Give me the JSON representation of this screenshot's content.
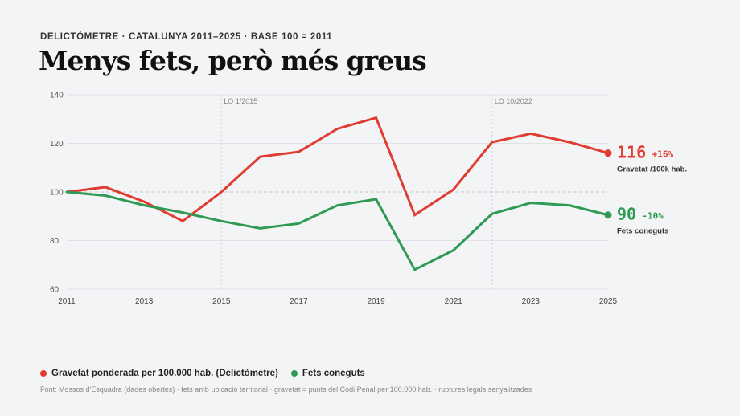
{
  "eyebrow": "DELICTÒMETRE · CATALUNYA 2011–2025 · BASE 100 = 2011",
  "headline": "Menys fets, però més greus",
  "legend": {
    "red_label": "Gravetat ponderada per 100.000 hab. (Delictòmetre)",
    "green_label": "Fets coneguts"
  },
  "source": "Font: Mossos d'Esquadra (dades obertes) · fets amb ubicació territorial · gravetat = punts del Codi Penal per 100.000 hab. · ruptures legals senyalitzades",
  "chart_data": {
    "type": "line",
    "title": "Menys fets, però més greus",
    "xlabel": "",
    "ylabel": "",
    "x": [
      2011,
      2012,
      2013,
      2014,
      2015,
      2016,
      2017,
      2018,
      2019,
      2020,
      2021,
      2022,
      2023,
      2024,
      2025
    ],
    "xticks": [
      "2011",
      "2013",
      "2015",
      "2017",
      "2019",
      "2021",
      "2023",
      "2025"
    ],
    "yticks": [
      "60",
      "80",
      "100",
      "120",
      "140"
    ],
    "ylim": [
      60,
      140
    ],
    "xlim": [
      2011,
      2025
    ],
    "grid": true,
    "baseline": 100,
    "annotations": [
      {
        "x": 2015,
        "label": "LO 1/2015"
      },
      {
        "x": 2022,
        "label": "LO 10/2022"
      }
    ],
    "series": [
      {
        "color": "#e03c31",
        "values": [
          100,
          102,
          96,
          88,
          100,
          114.5,
          116.5,
          126,
          130.5,
          90.5,
          101,
          120.5,
          124,
          120.5,
          116
        ],
        "end_value": "116",
        "end_change": "+16%",
        "end_label": "Gravetat /100k hab."
      },
      {
        "color": "#2e9a52",
        "values": [
          100,
          98.5,
          94.5,
          91.5,
          88,
          85,
          87,
          94.5,
          97,
          68,
          76,
          91,
          95.5,
          94.5,
          90.5
        ],
        "end_value": "90",
        "end_change": "-10%",
        "end_label": "Fets coneguts"
      }
    ]
  }
}
